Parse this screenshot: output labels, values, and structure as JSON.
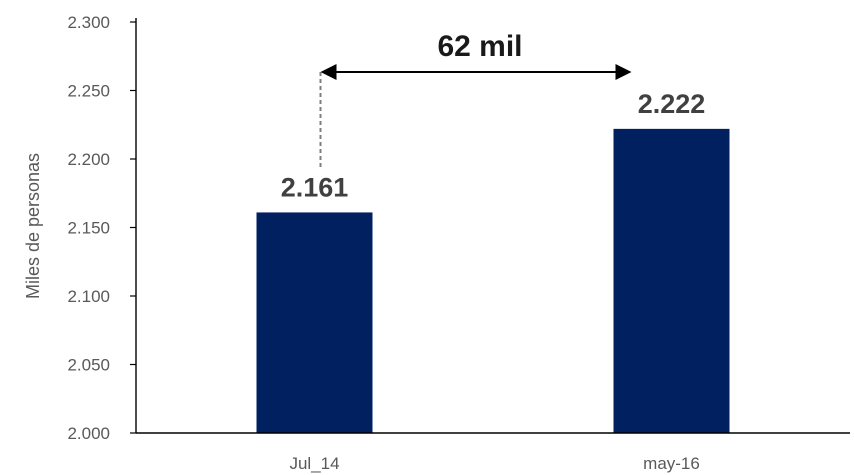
{
  "chart_data": {
    "type": "bar",
    "categories": [
      "Jul_14",
      "may-16"
    ],
    "values": [
      2161,
      2222
    ],
    "data_labels": [
      "2.161",
      "2.222"
    ],
    "ylabel": "Miles de personas",
    "ylim": [
      2000,
      2300
    ],
    "yticks": [
      2000,
      2050,
      2100,
      2150,
      2200,
      2250,
      2300
    ],
    "ytick_labels": [
      "2.000",
      "2.050",
      "2.100",
      "2.150",
      "2.200",
      "2.250",
      "2.300"
    ],
    "annotation": {
      "text": "62 mil",
      "from_category": "Jul_14",
      "to_category": "may-16"
    },
    "grid": false,
    "legend": "none",
    "colors": {
      "bar": "#002060",
      "axis": "#000000",
      "text": "#595959",
      "annotation_line": "#7f7f7f"
    }
  }
}
